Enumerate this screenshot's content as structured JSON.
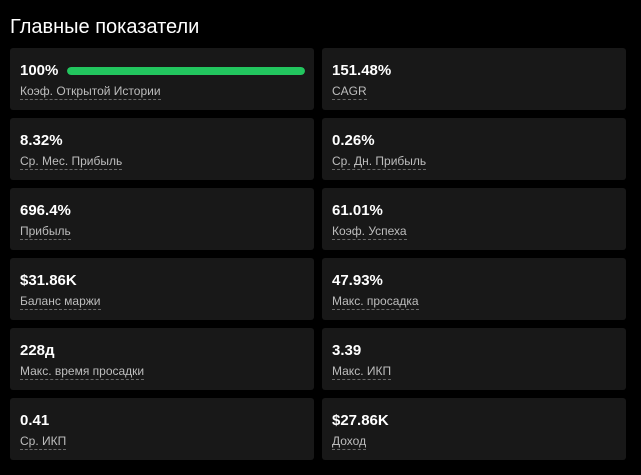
{
  "header": {
    "title": "Главные показатели"
  },
  "accent_color": "#22c55e",
  "metrics": [
    {
      "value": "100%",
      "label": "Коэф. Открытой Истории",
      "progress": 1.0
    },
    {
      "value": "151.48%",
      "label": "CAGR"
    },
    {
      "value": "8.32%",
      "label": "Ср. Мес. Прибыль"
    },
    {
      "value": "0.26%",
      "label": "Ср. Дн. Прибыль"
    },
    {
      "value": "696.4%",
      "label": "Прибыль"
    },
    {
      "value": "61.01%",
      "label": "Коэф. Успеха"
    },
    {
      "value": "$31.86K",
      "label": "Баланс маржи"
    },
    {
      "value": "47.93%",
      "label": "Макс. просадка"
    },
    {
      "value": "228д",
      "label": "Макс. время просадки"
    },
    {
      "value": "3.39",
      "label": "Макс. ИКП"
    },
    {
      "value": "0.41",
      "label": "Ср. ИКП"
    },
    {
      "value": "$27.86K",
      "label": "Доход"
    }
  ]
}
